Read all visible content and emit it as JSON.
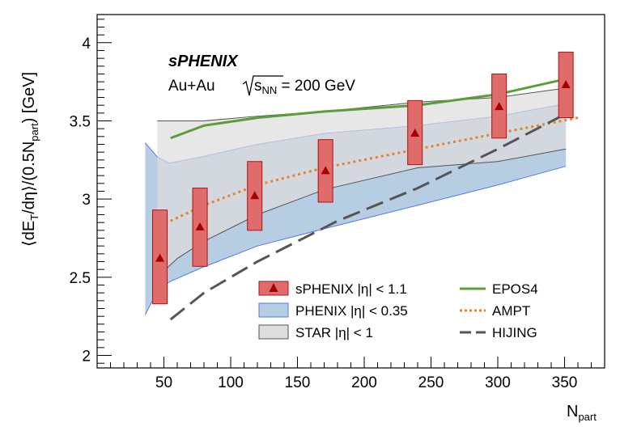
{
  "chart_data": {
    "type": "line",
    "title": "",
    "xlabel": "N",
    "xlabel_sub": "part",
    "ylabel_parts": [
      "⟨dE",
      "T",
      "/dη⟩/(0.5N",
      "part",
      ") [GeV]"
    ],
    "xlim": [
      0,
      380
    ],
    "ylim": [
      1.92,
      4.18
    ],
    "x_ticks": [
      50,
      100,
      150,
      200,
      250,
      300,
      350
    ],
    "y_ticks": [
      2,
      2.5,
      3,
      3.5,
      4
    ],
    "x_tick_labels": [
      "50",
      "100",
      "150",
      "200",
      "250",
      "300",
      "350"
    ],
    "y_tick_labels": [
      "2",
      "2.5",
      "3",
      "3.5",
      "4"
    ],
    "grid": false,
    "legend_position": "bottom-center",
    "annotation": {
      "title": "sPHENIX",
      "system": "Au+Au",
      "energy_prefix": "s",
      "energy_sub": "NN",
      "energy_suffix": " = 200 GeV"
    },
    "series": [
      {
        "name": "sPHENIX |η| < 1.1",
        "kind": "points_with_boxes",
        "color": "#a50000",
        "box_fill": "#e06b6b",
        "box_stroke": "#b01010",
        "points": [
          {
            "x": 47,
            "y": 2.62,
            "low": 2.33,
            "high": 2.93
          },
          {
            "x": 77,
            "y": 2.82,
            "low": 2.57,
            "high": 3.07
          },
          {
            "x": 118,
            "y": 3.02,
            "low": 2.8,
            "high": 3.24
          },
          {
            "x": 171,
            "y": 3.18,
            "low": 2.98,
            "high": 3.38
          },
          {
            "x": 238,
            "y": 3.42,
            "low": 3.22,
            "high": 3.63
          },
          {
            "x": 301,
            "y": 3.59,
            "low": 3.39,
            "high": 3.8
          },
          {
            "x": 351,
            "y": 3.73,
            "low": 3.52,
            "high": 3.94
          }
        ]
      },
      {
        "name": "PHENIX |η| < 0.35",
        "kind": "band",
        "fill": "#b7cde2",
        "stroke": "#5577ee",
        "x": [
          36,
          45,
          54,
          78,
          120,
          170,
          240,
          300,
          351
        ],
        "lower": [
          2.26,
          2.41,
          2.47,
          2.56,
          2.7,
          2.81,
          2.96,
          3.09,
          3.21
        ],
        "upper": [
          3.36,
          3.27,
          3.23,
          3.27,
          3.35,
          3.42,
          3.47,
          3.53,
          3.61
        ]
      },
      {
        "name": "STAR |η| < 1",
        "kind": "band",
        "fill": "#dddddd",
        "stroke": "#555555",
        "x": [
          45,
          60,
          80,
          120,
          170,
          240,
          300,
          351
        ],
        "lower": [
          2.5,
          2.62,
          2.73,
          2.9,
          3.06,
          3.2,
          3.24,
          3.32
        ],
        "upper": [
          3.5,
          3.5,
          3.5,
          3.53,
          3.56,
          3.62,
          3.65,
          3.71
        ]
      },
      {
        "name": "EPOS4",
        "kind": "line",
        "color": "#5a9e3a",
        "dash": "solid",
        "x": [
          55,
          80,
          120,
          170,
          240,
          300,
          352
        ],
        "y": [
          3.39,
          3.47,
          3.52,
          3.56,
          3.6,
          3.67,
          3.77
        ]
      },
      {
        "name": "AMPT",
        "kind": "line",
        "color": "#e6832a",
        "dash": "dotted",
        "x": [
          55,
          80,
          120,
          170,
          240,
          300,
          360
        ],
        "y": [
          2.86,
          2.96,
          3.09,
          3.2,
          3.32,
          3.42,
          3.52
        ]
      },
      {
        "name": "HIJING",
        "kind": "line",
        "color": "#555555",
        "dash": "dashed",
        "x": [
          55,
          80,
          120,
          180,
          240,
          300,
          352
        ],
        "y": [
          2.23,
          2.4,
          2.6,
          2.86,
          3.07,
          3.32,
          3.55
        ]
      }
    ]
  }
}
